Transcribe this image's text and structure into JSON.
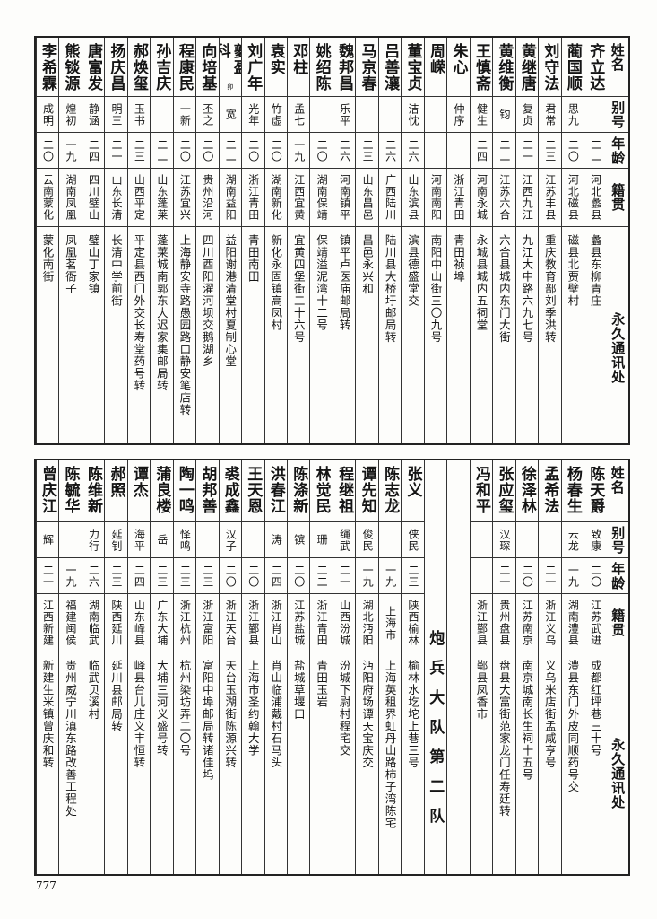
{
  "header": {
    "name": "姓名",
    "alias": "别号",
    "age": "年龄",
    "native": "籍贯",
    "address": "永久通讯处"
  },
  "top_table": [
    {
      "name": "齐立达",
      "alias": "",
      "age": "二二",
      "native": "河北蠡县",
      "address": "蠡县东柳青庄"
    },
    {
      "name": "蔺国顺",
      "alias": "思九",
      "age": "二〇",
      "native": "河北磁县",
      "address": "磁县北贾壁村"
    },
    {
      "name": "刘守法",
      "alias": "君常",
      "age": "二三",
      "native": "江苏丰县",
      "address": "重庆教育部刘季洪转"
    },
    {
      "name": "黄继唐",
      "alias": "复贞",
      "age": "二一",
      "native": "江西九江",
      "address": "九江大中路六九七号"
    },
    {
      "name": "黄维衡",
      "alias": "钧",
      "age": "二二",
      "native": "江苏六合",
      "address": "六合县城内东门大街"
    },
    {
      "name": "王慎斋",
      "alias": "健生",
      "age": "二四",
      "native": "河南永城",
      "address": "永城县城内五祠堂"
    },
    {
      "name": "朱心",
      "alias": "仲序",
      "age": "",
      "native": "浙江青田",
      "address": "青田祯埠"
    },
    {
      "name": "周嵘",
      "alias": "",
      "age": "",
      "native": "河南南阳",
      "address": "南阳中山街三〇九号"
    },
    {
      "name": "董宝贞",
      "alias": "洁忱",
      "age": "二六",
      "native": "山东滨县",
      "address": "滨县德盛堂交"
    },
    {
      "name": "吕善瀼",
      "alias": "",
      "age": "二六",
      "native": "广西陆川",
      "address": "陆川县大桥圩邮局转"
    },
    {
      "name": "马京春",
      "alias": "",
      "age": "二三",
      "native": "山东昌邑",
      "address": "昌邑永兴和"
    },
    {
      "name": "魏邦昌",
      "alias": "乐平",
      "age": "二六",
      "native": "河南镇平",
      "address": "镇平卢医庙邮局转"
    },
    {
      "name": "姚绍陈",
      "alias": "",
      "age": "二〇",
      "native": "湖南保靖",
      "address": "保靖溢泥湾十二号"
    },
    {
      "name": "邓柱",
      "alias": "孟七",
      "age": "一九",
      "native": "江西宜黄",
      "address": "宜黄四堡街二十六号"
    },
    {
      "name": "袁实",
      "alias": "竹虚",
      "age": "二〇",
      "native": "湖南新化",
      "address": "新化永固镇高凤村"
    },
    {
      "name": "刘广年",
      "alias": "光年",
      "age": "二〇",
      "native": "浙江青田",
      "address": "青田南田"
    },
    {
      "name": "夔盈科",
      "note": "卯",
      "alias": "宽",
      "age": "二二",
      "native": "湖南益阳",
      "address": "益阳谢港清堂村夏制心堂"
    },
    {
      "name": "向培基",
      "alias": "丕之",
      "age": "二〇",
      "native": "贵州沿河",
      "address": "四川酉阳濯河坝交鹅湖乡"
    },
    {
      "name": "程康民",
      "alias": "一新",
      "age": "二〇",
      "native": "江苏宜兴",
      "address": "上海静安寺路愚园路口静安笔店转"
    },
    {
      "name": "孙吉庆",
      "alias": "",
      "age": "二二",
      "native": "山东蓬莱",
      "address": "蓬莱城南郭东大迟家集邮局转"
    },
    {
      "name": "郝焕玺",
      "alias": "玉书",
      "age": "二三",
      "native": "山西平定",
      "address": "平定县西门外交长寿堂药号转"
    },
    {
      "name": "扬庆昌",
      "alias": "明三",
      "age": "二一",
      "native": "山东长清",
      "address": "长清中学前街"
    },
    {
      "name": "唐富发",
      "alias": "静涵",
      "age": "二四",
      "native": "四川璧山",
      "address": "璧山丁家镇"
    },
    {
      "name": "熊锬源",
      "alias": "煌初",
      "age": "一九",
      "native": "湖南凤凰",
      "address": "凤凰茗衙子"
    },
    {
      "name": "李希霖",
      "alias": "成明",
      "age": "二〇",
      "native": "云南蒙化",
      "address": "蒙化南街"
    }
  ],
  "bottom_table": [
    {
      "name": "陈天爵",
      "alias": "致康",
      "age": "二〇",
      "native": "江苏武进",
      "address": "成都红坪巷三十号"
    },
    {
      "name": "杨春生",
      "alias": "云龙",
      "age": "一九",
      "native": "湖南澧县",
      "address": "澧县东门外皮同顺药号交"
    },
    {
      "name": "孟希法",
      "alias": "",
      "age": "二一",
      "native": "浙江义乌",
      "address": "义乌米店街孟咸亨号"
    },
    {
      "name": "徐泽林",
      "alias": "",
      "age": "二〇",
      "native": "江苏南京",
      "address": "南京城南长生祠十五号"
    },
    {
      "name": "张应玺",
      "alias": "汉琛",
      "age": "二一",
      "native": "贵州盘县",
      "address": "盘县大富街范家龙门任寿廷转"
    },
    {
      "name": "冯和平",
      "alias": "",
      "age": "",
      "native": "浙江鄞县",
      "address": "鄞县凤香市"
    },
    {
      "blank": true
    },
    {
      "unit_label": "炮兵大队第二队"
    },
    {
      "name": "张义",
      "alias": "侠民",
      "age": "二三",
      "native": "陕西榆林",
      "address": "榆林水圪坨上巷三号"
    },
    {
      "name": "陈志龙",
      "alias": "",
      "age": "一九",
      "native": "上海市",
      "address": "上海英租界虹丹山路柿子湾陈宅"
    },
    {
      "name": "谭先知",
      "alias": "俊民",
      "age": "一九",
      "native": "湖北沔阳",
      "address": "沔阳府场谭天宝庆交"
    },
    {
      "name": "程继祖",
      "alias": "绳武",
      "age": "二一",
      "native": "山西汾城",
      "address": "汾城下尉村程宅交"
    },
    {
      "name": "林觉民",
      "alias": "珊",
      "age": "二二",
      "native": "浙江青田",
      "address": "青田玉岩"
    },
    {
      "name": "陈涤新",
      "alias": "镔",
      "age": "二〇",
      "native": "江苏盐城",
      "address": "盐城草堰口"
    },
    {
      "name": "洪春江",
      "alias": "涛",
      "age": "二四",
      "native": "浙江肖山",
      "address": "肖山临浦戴村石马头"
    },
    {
      "name": "王天恩",
      "alias": "",
      "age": "二〇",
      "native": "浙江鄞县",
      "address": "上海市圣约翰大学"
    },
    {
      "name": "裘成鑫",
      "alias": "汉子",
      "age": "二〇",
      "native": "浙江天台",
      "address": "天台玉湖街陈源兴转"
    },
    {
      "name": "胡邦善",
      "alias": "",
      "age": "二三",
      "native": "浙江富阳",
      "address": "富阳中埠邮局转诸佳坞"
    },
    {
      "name": "陶一鸣",
      "alias": "怿鸣",
      "age": "二三",
      "native": "浙江杭州",
      "address": "杭州染坊弄二〇号"
    },
    {
      "name": "蒲良楼",
      "alias": "岳",
      "age": "二三",
      "native": "广东大埔",
      "address": "大埔三河义盛号转"
    },
    {
      "name": "谭杰",
      "alias": "海平",
      "age": "二四",
      "native": "山东峄县",
      "address": "峄县台儿庄义丰恒转"
    },
    {
      "name": "郝照",
      "alias": "延钊",
      "age": "二三",
      "native": "陕西延川",
      "address": "延川县邮局转"
    },
    {
      "name": "陈维新",
      "alias": "力行",
      "age": "二六",
      "native": "湖南临武",
      "address": "临武贝溪村"
    },
    {
      "name": "陈毓华",
      "alias": "",
      "age": "一九",
      "native": "福建闽侯",
      "address": "贵州威宁川滇东路改善工程处"
    },
    {
      "name": "曾庆江",
      "alias": "辉",
      "age": "二一",
      "native": "江西新建",
      "address": "新建生米镇曾庆和转"
    }
  ],
  "page_number": "777"
}
